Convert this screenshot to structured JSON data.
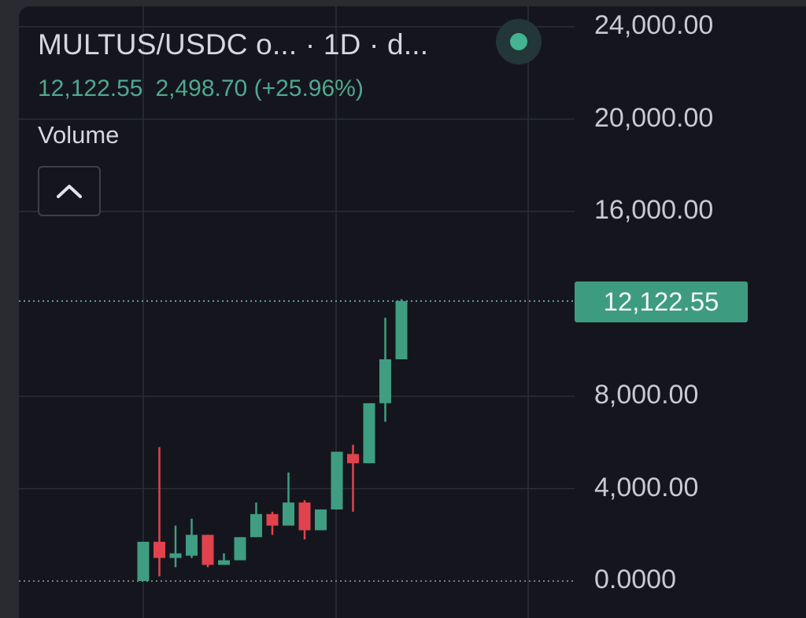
{
  "header": {
    "symbol_title": "MULTUS/USDC o... · 1D · d...",
    "last_price": "12,122.55",
    "change": "2,498.70 (+25.96%)",
    "volume_label": "Volume",
    "collapse_icon": "chevron-up-icon",
    "status_icon": "market-status-dot-icon"
  },
  "colors": {
    "up": "#3f9d82",
    "down": "#e0434d",
    "background": "#15161d",
    "grid": "#2c2e36",
    "price_line": "#5aa596"
  },
  "price_tag": "12,122.55",
  "chart_data": {
    "type": "candlestick",
    "title": "MULTUS/USDC o... · 1D · d...",
    "ylabel": "",
    "xlabel": "",
    "ylim": [
      0,
      24000
    ],
    "yticks": [
      "24,000.00",
      "20,000.00",
      "16,000.00",
      "12,122.55",
      "8,000.00",
      "4,000.00",
      "0.0000"
    ],
    "ytick_values": [
      24000,
      20000,
      16000,
      12122.55,
      8000,
      4000,
      0
    ],
    "last_price": 12122.55,
    "grid": true,
    "candles": [
      {
        "open": 0,
        "high": 1700,
        "low": 0,
        "close": 1700
      },
      {
        "open": 1700,
        "high": 5800,
        "low": 200,
        "close": 1000
      },
      {
        "open": 1000,
        "high": 2400,
        "low": 600,
        "close": 1200
      },
      {
        "open": 1100,
        "high": 2700,
        "low": 1000,
        "close": 2000
      },
      {
        "open": 2000,
        "high": 2000,
        "low": 600,
        "close": 700
      },
      {
        "open": 700,
        "high": 1200,
        "low": 700,
        "close": 900
      },
      {
        "open": 900,
        "high": 1900,
        "low": 900,
        "close": 1900
      },
      {
        "open": 1900,
        "high": 3400,
        "low": 1900,
        "close": 2900
      },
      {
        "open": 2900,
        "high": 3000,
        "low": 2000,
        "close": 2400
      },
      {
        "open": 2400,
        "high": 4700,
        "low": 2400,
        "close": 3400
      },
      {
        "open": 3400,
        "high": 3500,
        "low": 1800,
        "close": 2200
      },
      {
        "open": 2200,
        "high": 3100,
        "low": 2200,
        "close": 3100
      },
      {
        "open": 3100,
        "high": 5600,
        "low": 3100,
        "close": 5600
      },
      {
        "open": 5500,
        "high": 5900,
        "low": 3000,
        "close": 5100
      },
      {
        "open": 5100,
        "high": 7700,
        "low": 5100,
        "close": 7700
      },
      {
        "open": 7700,
        "high": 11400,
        "low": 6900,
        "close": 9600
      },
      {
        "open": 9600,
        "high": 12200,
        "low": 9600,
        "close": 12122.55
      }
    ]
  }
}
